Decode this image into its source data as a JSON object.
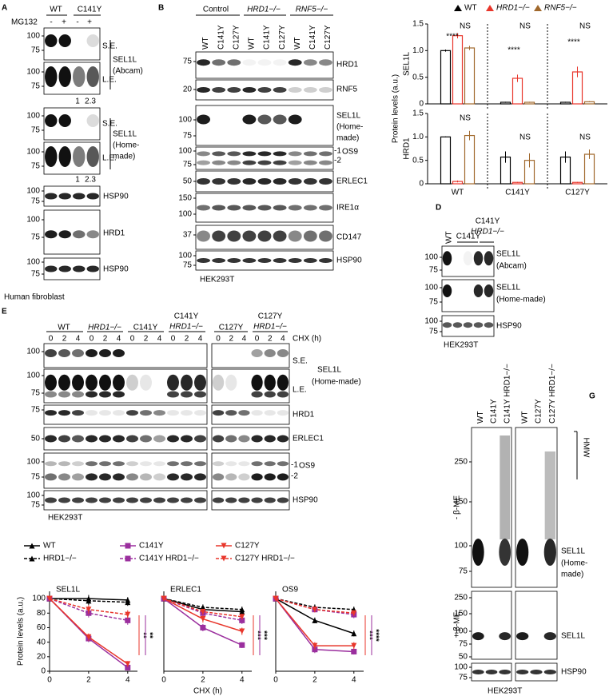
{
  "figure": {
    "A": {
      "letter": "A",
      "groups": [
        "WT",
        "C141Y"
      ],
      "treatment": "MG132",
      "signs": [
        "-",
        "+",
        "-",
        "+"
      ],
      "mw": [
        100,
        75,
        100,
        75,
        100,
        75,
        100,
        75,
        100,
        75,
        100,
        75,
        100,
        75
      ],
      "exposure": [
        "S.E.",
        "L.E."
      ],
      "proteins": [
        "SEL1L",
        "(Abcam)",
        "(Home-",
        "made)",
        "HSP90",
        "HRD1"
      ],
      "ratios": [
        1,
        2.3
      ],
      "cell": "Human fibroblast"
    },
    "B": {
      "letter": "B",
      "groups": [
        "Control",
        "HRD1−/−",
        "RNF5−/−"
      ],
      "lanes": [
        "WT",
        "C141Y",
        "C127Y"
      ],
      "mw": [
        75,
        20,
        100,
        75,
        100,
        75,
        50,
        150,
        100,
        37,
        100,
        75
      ],
      "proteins": [
        "HRD1",
        "RNF5",
        "SEL1L",
        "(Home-",
        "made)",
        "OS9",
        "ERLEC1",
        "IRE1α",
        "CD147",
        "HSP90"
      ],
      "os9_bands": [
        "-1",
        "-2"
      ],
      "cell": "HEK293T"
    },
    "D": {
      "letter": "D",
      "lanes": [
        "WT",
        "C141Y",
        "HRD1−/−"
      ],
      "mw": [
        100,
        75,
        100,
        75,
        100,
        75
      ],
      "proteins": [
        "SEL1L",
        "(Abcam)",
        "(Home-made)",
        "HSP90"
      ],
      "cell": "HEK293T"
    },
    "E": {
      "letter": "E",
      "groups": [
        "WT",
        "HRD1−/−",
        "C141Y",
        "C127Y"
      ],
      "times": [
        0,
        2,
        4
      ],
      "treatment": "CHX (h)",
      "mw": [
        100,
        100,
        75,
        75,
        50,
        100,
        75,
        100,
        75
      ],
      "exposure": [
        "S.E.",
        "L.E."
      ],
      "proteins": [
        "SEL1L",
        "(Home-made)",
        "HRD1",
        "ERLEC1",
        "OS9",
        "HSP90"
      ],
      "os9_bands": [
        "-1",
        "-2"
      ],
      "cell": "HEK293T"
    },
    "G": {
      "letter": "G",
      "lanes": [
        "WT",
        "C141Y",
        "C141Y HRD1−/−",
        "C127Y",
        "C127Y HRD1−/−"
      ],
      "conditions": [
        "- β-ME",
        "+ β-ME"
      ],
      "hmw": "HMW",
      "mw": [
        250,
        150,
        100,
        75,
        250,
        150,
        100,
        75,
        50,
        100,
        75
      ],
      "proteins": [
        "SEL1L",
        "(Home-",
        "made)",
        "HSP90"
      ],
      "cell": "HEK293T"
    }
  },
  "chart_data": [
    {
      "type": "bar",
      "title": "SEL1L",
      "ylabel": "Protein levels (a.u.)",
      "legend": "top",
      "ylim": [
        0,
        1.5
      ],
      "yticks": [
        0,
        0.5,
        {
          "value": 1,
          "label": "1.0"
        },
        1.5
      ],
      "series": [
        {
          "name": "WT",
          "color": "#000000",
          "values": [
            1.0,
            0.03,
            0.03
          ],
          "errors": [
            0.02,
            0.01,
            0.01
          ]
        },
        {
          "name": "HRD1−/−",
          "color": "#e8362b",
          "values": [
            1.28,
            0.48,
            0.6
          ],
          "errors": [
            0.05,
            0.07,
            0.1
          ]
        },
        {
          "name": "RNF5−/−",
          "color": "#a0682c",
          "values": [
            1.05,
            0.03,
            0.04
          ],
          "errors": [
            0.04,
            0.01,
            0.01
          ]
        }
      ],
      "annotations": [
        "****",
        "NS",
        "NS",
        "****",
        "NS",
        "****"
      ]
    },
    {
      "type": "bar",
      "title": "HRD1",
      "categories": [
        "WT",
        "C141Y",
        "C127Y"
      ],
      "ylim": [
        0,
        1.5
      ],
      "yticks": [
        0,
        0.5,
        {
          "value": 1,
          "label": "1.0"
        },
        1.5
      ],
      "series": [
        {
          "color": "#000000",
          "values": [
            1.0,
            0.57,
            0.57
          ],
          "errors": [
            0.01,
            0.12,
            0.12
          ]
        },
        {
          "color": "#e8362b",
          "values": [
            0.05,
            0.03,
            0.03
          ],
          "errors": [
            0.02,
            0.01,
            0.01
          ]
        },
        {
          "color": "#a0682c",
          "values": [
            1.03,
            0.5,
            0.63
          ],
          "errors": [
            0.1,
            0.15,
            0.1
          ]
        }
      ],
      "annotations": [
        "NS",
        "NS",
        "NS"
      ]
    },
    {
      "type": "line",
      "title": "SEL1L",
      "ylabel": "Protein levels (a.u.)",
      "x": [
        0,
        2,
        4
      ],
      "xlim": [
        0,
        4.5
      ],
      "xticks": [
        0,
        2,
        4
      ],
      "ylim": [
        0,
        110
      ],
      "yticks": [
        0,
        20,
        40,
        60,
        80,
        100
      ],
      "series": [
        {
          "name": "WT",
          "color": "#000000",
          "dash": false,
          "marker": "triangle",
          "values": [
            100,
            100,
            98
          ],
          "errors": [
            0,
            5,
            4
          ]
        },
        {
          "name": "HRD1−/−",
          "color": "#000000",
          "dash": true,
          "marker": "triangle",
          "values": [
            100,
            97,
            95
          ],
          "errors": [
            0,
            6,
            5
          ]
        },
        {
          "name": "C141Y",
          "color": "#9b2f9e",
          "dash": false,
          "marker": "square",
          "values": [
            100,
            45,
            5
          ],
          "errors": [
            0,
            5,
            4
          ]
        },
        {
          "name": "C141Y HRD1−/−",
          "color": "#9b2f9e",
          "dash": true,
          "marker": "square",
          "values": [
            100,
            80,
            70
          ],
          "errors": [
            0,
            6,
            6
          ]
        },
        {
          "name": "C127Y",
          "color": "#e8362b",
          "dash": false,
          "marker": "triangle-down",
          "values": [
            100,
            47,
            10
          ],
          "errors": [
            0,
            5,
            4
          ]
        },
        {
          "name": "C127Y HRD1−/−",
          "color": "#e8362b",
          "dash": true,
          "marker": "triangle-down",
          "values": [
            100,
            85,
            78
          ],
          "errors": [
            0,
            6,
            6
          ]
        }
      ],
      "annotations": [
        {
          "text": "**",
          "color": "#e8362b"
        },
        {
          "text": "**",
          "color": "#9b2f9e"
        }
      ]
    },
    {
      "type": "line",
      "title": "ERLEC1",
      "xlabel": "CHX (h)",
      "x": [
        0,
        2,
        4
      ],
      "xlim": [
        0,
        4.5
      ],
      "xticks": [
        0,
        2,
        4
      ],
      "ylim": [
        0,
        110
      ],
      "series": [
        {
          "color": "#000000",
          "dash": false,
          "marker": "triangle",
          "values": [
            100,
            85,
            82
          ],
          "errors": [
            0,
            4,
            4
          ]
        },
        {
          "color": "#000000",
          "dash": true,
          "marker": "triangle",
          "values": [
            100,
            88,
            85
          ],
          "errors": [
            0,
            4,
            4
          ]
        },
        {
          "color": "#9b2f9e",
          "dash": false,
          "marker": "square",
          "values": [
            100,
            60,
            36
          ],
          "errors": [
            0,
            5,
            4
          ]
        },
        {
          "color": "#9b2f9e",
          "dash": true,
          "marker": "square",
          "values": [
            100,
            80,
            70
          ],
          "errors": [
            0,
            4,
            5
          ]
        },
        {
          "color": "#e8362b",
          "dash": false,
          "marker": "triangle-down",
          "values": [
            100,
            72,
            55
          ],
          "errors": [
            0,
            5,
            5
          ]
        },
        {
          "color": "#e8362b",
          "dash": true,
          "marker": "triangle-down",
          "values": [
            100,
            82,
            75
          ],
          "errors": [
            0,
            4,
            4
          ]
        }
      ],
      "annotations": [
        {
          "text": "***",
          "color": "#e8362b"
        },
        {
          "text": "***",
          "color": "#9b2f9e"
        }
      ]
    },
    {
      "type": "line",
      "title": "OS9",
      "x": [
        0,
        2,
        4
      ],
      "xlim": [
        0,
        4.5
      ],
      "xticks": [
        0,
        2,
        4
      ],
      "ylim": [
        0,
        110
      ],
      "series": [
        {
          "color": "#000000",
          "dash": false,
          "marker": "triangle",
          "values": [
            100,
            70,
            52
          ],
          "errors": [
            0,
            4,
            4
          ]
        },
        {
          "color": "#000000",
          "dash": true,
          "marker": "triangle",
          "values": [
            100,
            88,
            85
          ],
          "errors": [
            0,
            4,
            4
          ]
        },
        {
          "color": "#9b2f9e",
          "dash": false,
          "marker": "square",
          "values": [
            100,
            30,
            27
          ],
          "errors": [
            0,
            5,
            4
          ]
        },
        {
          "color": "#9b2f9e",
          "dash": true,
          "marker": "square",
          "values": [
            100,
            85,
            78
          ],
          "errors": [
            0,
            4,
            5
          ]
        },
        {
          "color": "#e8362b",
          "dash": false,
          "marker": "triangle-down",
          "values": [
            100,
            35,
            35
          ],
          "errors": [
            0,
            5,
            5
          ]
        },
        {
          "color": "#e8362b",
          "dash": true,
          "marker": "triangle-down",
          "values": [
            100,
            85,
            80
          ],
          "errors": [
            0,
            4,
            4
          ]
        }
      ],
      "annotations": [
        {
          "text": "***",
          "color": "#e8362b"
        },
        {
          "text": "****",
          "color": "#9b2f9e"
        }
      ]
    }
  ]
}
